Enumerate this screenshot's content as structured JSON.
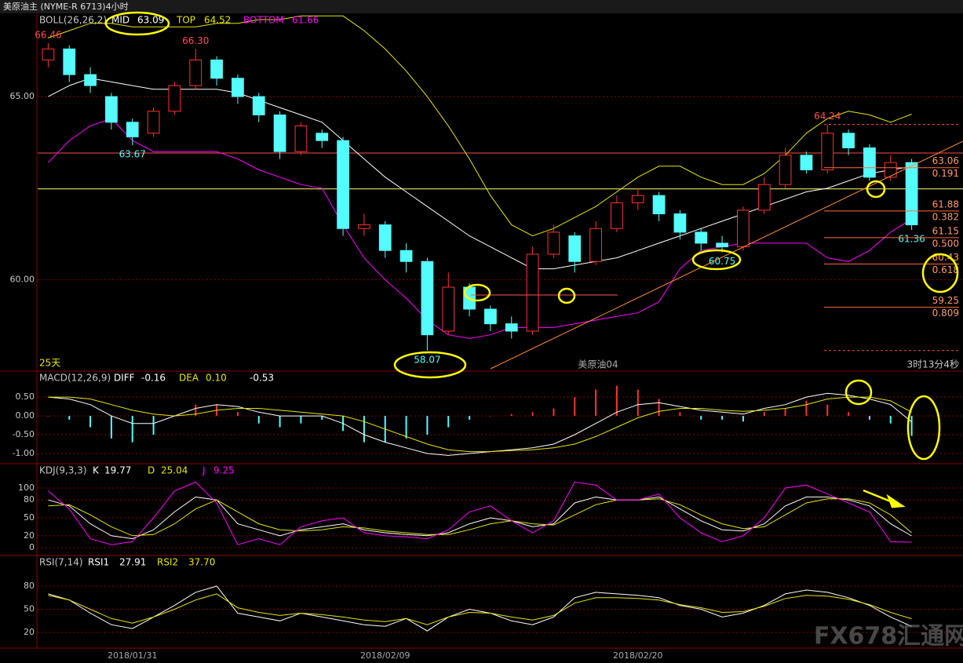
{
  "chart_data": [
    {
      "type": "candlestick",
      "title": "美原油主 (NYME-R 6713)4小时",
      "indicator": "BOLL(26,26,2)",
      "period_label": "25天",
      "contract": "美原油04",
      "countdown": "3时13分4秒",
      "watermark": "FX678汇通网",
      "categories": [
        null,
        null,
        null,
        null,
        "2018/01/31",
        null,
        null,
        null,
        null,
        null,
        null,
        null,
        null,
        null,
        null,
        null,
        "2018/02/09",
        null,
        null,
        null,
        null,
        null,
        null,
        null,
        null,
        null,
        null,
        null,
        "2018/02/20",
        null,
        null,
        null,
        null,
        null,
        null,
        null,
        null,
        null,
        null,
        null,
        null,
        null
      ],
      "open": [
        66.0,
        66.3,
        65.6,
        65.0,
        64.3,
        64.0,
        64.6,
        65.3,
        66.0,
        65.5,
        65.0,
        64.5,
        63.5,
        64.0,
        63.8,
        61.4,
        61.5,
        60.8,
        60.5,
        58.6,
        59.8,
        59.2,
        58.8,
        58.6,
        60.7,
        61.2,
        60.5,
        61.4,
        62.1,
        62.3,
        61.8,
        61.3,
        61.0,
        60.9,
        61.9,
        62.6,
        63.4,
        63.0,
        64.0,
        63.6,
        62.8,
        63.2
      ],
      "high": [
        66.46,
        66.4,
        65.8,
        65.1,
        64.4,
        64.7,
        65.4,
        66.3,
        66.1,
        65.6,
        65.1,
        64.6,
        64.3,
        64.1,
        63.9,
        61.8,
        61.6,
        61.0,
        60.6,
        60.2,
        59.9,
        59.3,
        59.0,
        60.9,
        61.5,
        61.3,
        61.6,
        62.3,
        62.5,
        62.4,
        61.9,
        61.4,
        61.2,
        62.0,
        62.8,
        63.6,
        63.5,
        64.24,
        64.1,
        63.7,
        63.4,
        63.3
      ],
      "low": [
        65.8,
        65.4,
        65.1,
        64.1,
        63.67,
        63.9,
        64.5,
        65.2,
        65.3,
        64.8,
        64.3,
        63.3,
        63.4,
        63.6,
        61.2,
        61.2,
        60.6,
        60.2,
        58.07,
        58.5,
        59.0,
        58.6,
        58.4,
        58.5,
        60.6,
        60.2,
        60.4,
        61.3,
        61.9,
        61.6,
        61.1,
        60.8,
        60.75,
        60.8,
        61.8,
        62.5,
        62.9,
        62.9,
        63.4,
        62.7,
        62.7,
        61.36
      ],
      "close": [
        66.3,
        65.6,
        65.3,
        64.3,
        63.9,
        64.6,
        65.3,
        66.0,
        65.5,
        65.0,
        64.5,
        63.5,
        64.2,
        63.8,
        61.4,
        61.5,
        60.8,
        60.5,
        58.5,
        59.8,
        59.2,
        58.8,
        58.6,
        60.7,
        61.3,
        60.5,
        61.4,
        62.1,
        62.3,
        61.8,
        61.3,
        61.0,
        60.9,
        61.9,
        62.6,
        63.4,
        63.0,
        64.0,
        63.6,
        62.8,
        63.2,
        61.5
      ],
      "up_color": "#ff3232",
      "down_color": "#54fcfc",
      "series": [
        {
          "name": "MID",
          "color": "#ffffff",
          "values": [
            65.0,
            65.3,
            65.5,
            65.4,
            65.3,
            65.2,
            65.2,
            65.2,
            65.2,
            65.1,
            64.9,
            64.7,
            64.5,
            64.3,
            63.8,
            63.3,
            62.8,
            62.4,
            62.0,
            61.6,
            61.2,
            60.9,
            60.6,
            60.3,
            60.3,
            60.4,
            60.5,
            60.6,
            60.8,
            61.0,
            61.2,
            61.4,
            61.6,
            61.8,
            62.0,
            62.2,
            62.4,
            62.5,
            62.7,
            62.9,
            63.0,
            63.09
          ]
        },
        {
          "name": "TOP",
          "color": "#e6e600",
          "values": [
            66.6,
            66.8,
            67.0,
            67.0,
            66.9,
            66.9,
            66.9,
            66.9,
            67.0,
            67.0,
            67.1,
            67.1,
            67.2,
            67.2,
            67.2,
            66.8,
            66.3,
            65.7,
            65.0,
            64.2,
            63.3,
            62.3,
            61.5,
            61.2,
            61.4,
            61.7,
            62.0,
            62.4,
            62.8,
            63.1,
            63.1,
            62.8,
            62.6,
            62.6,
            62.9,
            63.4,
            64.0,
            64.4,
            64.6,
            64.5,
            64.3,
            64.52
          ]
        },
        {
          "name": "BOTTOM",
          "color": "#ff00ff",
          "values": [
            63.2,
            63.8,
            64.2,
            64.4,
            63.8,
            63.5,
            63.5,
            63.5,
            63.5,
            63.3,
            63.0,
            62.8,
            62.6,
            62.5,
            61.5,
            60.6,
            60.0,
            59.5,
            58.9,
            58.5,
            58.4,
            58.5,
            58.7,
            58.7,
            58.7,
            58.8,
            58.9,
            59.0,
            59.1,
            59.4,
            60.3,
            60.8,
            60.9,
            61.0,
            61.0,
            61.0,
            61.0,
            60.6,
            60.5,
            60.8,
            61.3,
            61.66
          ]
        }
      ],
      "price_labels": [
        {
          "text": "66.46",
          "index": 0,
          "at": "high"
        },
        {
          "text": "66.30",
          "index": 7,
          "at": "high"
        },
        {
          "text": "63.67",
          "index": 4,
          "at": "low"
        },
        {
          "text": "58.07",
          "index": 18,
          "at": "low"
        },
        {
          "text": "60.75",
          "index": 32,
          "at": "low"
        },
        {
          "text": "64.24",
          "index": 37,
          "at": "high"
        },
        {
          "text": "61.36",
          "index": 41,
          "at": "low"
        }
      ],
      "hlines": [
        {
          "value": 63.46,
          "color": "#ff4d4d"
        },
        {
          "value": 62.48,
          "color": "#ffff66"
        }
      ],
      "fib_levels": [
        {
          "price": 63.06,
          "ratio": 0.191
        },
        {
          "price": 61.88,
          "ratio": 0.382
        },
        {
          "price": 61.15,
          "ratio": {
            "value": 0.5,
            "label": "0.500"
          }
        },
        {
          "price": 60.43,
          "ratio": 0.618
        },
        {
          "price": 59.25,
          "ratio": 0.809
        }
      ],
      "ylim": [
        57.53,
        67.25
      ],
      "yticks": [
        {
          "value": 60,
          "label": "60.00"
        },
        {
          "value": 65,
          "label": "65.00"
        }
      ],
      "grid": true
    },
    {
      "type": "macd",
      "title": "MACD(12,26,9)",
      "series": [
        {
          "name": "DIFF",
          "color": "#ffffff",
          "values": [
            0.5,
            0.45,
            0.3,
            0.0,
            -0.2,
            -0.2,
            0.0,
            0.2,
            0.3,
            0.25,
            0.1,
            0.0,
            0.0,
            0.0,
            -0.2,
            -0.5,
            -0.7,
            -0.85,
            -1.0,
            -1.05,
            -1.0,
            -0.95,
            -0.9,
            -0.85,
            -0.75,
            -0.5,
            -0.2,
            0.1,
            0.3,
            0.35,
            0.25,
            0.15,
            0.1,
            0.05,
            0.2,
            0.3,
            0.5,
            0.6,
            0.55,
            0.45,
            0.3,
            -0.16
          ]
        },
        {
          "name": "DEA",
          "color": "#e6e600",
          "values": [
            0.5,
            0.5,
            0.45,
            0.3,
            0.15,
            0.05,
            0.0,
            0.05,
            0.15,
            0.2,
            0.2,
            0.15,
            0.1,
            0.05,
            0.0,
            -0.15,
            -0.35,
            -0.55,
            -0.75,
            -0.9,
            -0.95,
            -0.95,
            -0.92,
            -0.9,
            -0.85,
            -0.75,
            -0.55,
            -0.3,
            -0.05,
            0.12,
            0.2,
            0.2,
            0.15,
            0.12,
            0.15,
            0.2,
            0.3,
            0.45,
            0.5,
            0.5,
            0.4,
            0.1
          ],
          "value_labels": [
            null,
            null,
            null,
            null,
            null,
            null,
            null,
            null,
            null,
            null,
            null,
            null,
            null,
            null,
            null,
            null,
            null,
            null,
            null,
            null,
            null,
            null,
            null,
            null,
            null,
            null,
            null,
            null,
            null,
            null,
            null,
            null,
            null,
            null,
            null,
            null,
            null,
            null,
            null,
            null,
            null,
            "0.10"
          ]
        }
      ],
      "bars": [
        0,
        -0.1,
        -0.3,
        -0.6,
        -0.7,
        -0.5,
        0,
        0.3,
        0.3,
        0.1,
        -0.2,
        -0.3,
        -0.2,
        -0.1,
        -0.4,
        -0.7,
        -0.7,
        -0.6,
        -0.5,
        -0.3,
        -0.1,
        0,
        0.05,
        0.1,
        0.2,
        0.5,
        0.7,
        0.8,
        0.7,
        0.45,
        0.1,
        -0.1,
        -0.1,
        -0.15,
        0.1,
        0.2,
        0.4,
        0.3,
        0.1,
        -0.1,
        -0.2,
        -0.53
      ],
      "up_color": "#ff3232",
      "down_color": "#54fcfc",
      "ylim": [
        -1.25,
        1.17
      ],
      "yticks": [
        {
          "value": 0.5,
          "label": "0.50"
        },
        {
          "value": 0,
          "label": "0.00"
        },
        {
          "value": -0.5,
          "label": "-0.50"
        },
        {
          "value": -1,
          "label": "-1.00"
        }
      ],
      "grid": true
    },
    {
      "type": "line",
      "title": "KDJ(9,3,3)",
      "series": [
        {
          "name": "K",
          "color": "#ffffff",
          "values": [
            80,
            70,
            40,
            20,
            15,
            30,
            60,
            85,
            80,
            40,
            30,
            20,
            30,
            35,
            40,
            30,
            25,
            22,
            20,
            25,
            40,
            50,
            45,
            35,
            40,
            75,
            85,
            80,
            80,
            85,
            65,
            45,
            30,
            28,
            40,
            70,
            85,
            85,
            80,
            70,
            40,
            19.77
          ]
        },
        {
          "name": "D",
          "color": "#e6e600",
          "values": [
            70,
            72,
            55,
            35,
            20,
            22,
            40,
            65,
            80,
            60,
            40,
            30,
            28,
            30,
            35,
            33,
            28,
            25,
            22,
            22,
            30,
            40,
            45,
            40,
            38,
            55,
            72,
            80,
            80,
            82,
            72,
            55,
            40,
            32,
            35,
            55,
            75,
            82,
            82,
            75,
            55,
            25.04
          ]
        },
        {
          "name": "J",
          "color": "#ff00ff",
          "values": [
            95,
            65,
            15,
            5,
            10,
            50,
            95,
            110,
            75,
            5,
            15,
            5,
            35,
            45,
            50,
            25,
            20,
            18,
            15,
            30,
            60,
            70,
            45,
            25,
            45,
            110,
            105,
            80,
            80,
            90,
            50,
            25,
            10,
            20,
            50,
            100,
            105,
            90,
            75,
            60,
            10,
            9.25
          ]
        }
      ],
      "ylim": [
        -11.8,
        139.5
      ],
      "yticks": [
        0,
        20,
        50,
        80,
        100
      ],
      "grid": true
    },
    {
      "type": "line",
      "title": "RSI(7,14)",
      "series": [
        {
          "name": "RSI1",
          "color": "#ffffff",
          "values": [
            70,
            62,
            45,
            30,
            25,
            40,
            55,
            72,
            80,
            45,
            40,
            35,
            45,
            40,
            35,
            30,
            28,
            38,
            22,
            40,
            50,
            45,
            35,
            30,
            40,
            65,
            72,
            70,
            68,
            65,
            55,
            50,
            40,
            45,
            55,
            70,
            75,
            72,
            65,
            55,
            40,
            27.91
          ]
        },
        {
          "name": "RSI2",
          "color": "#e6e600",
          "values": [
            68,
            62,
            50,
            38,
            32,
            40,
            50,
            62,
            70,
            52,
            46,
            42,
            45,
            43,
            40,
            36,
            34,
            38,
            30,
            40,
            46,
            45,
            40,
            36,
            42,
            58,
            65,
            65,
            64,
            62,
            56,
            52,
            46,
            47,
            54,
            64,
            68,
            67,
            63,
            56,
            46,
            37.7
          ],
          "value_labels": [
            null,
            null,
            null,
            null,
            null,
            null,
            null,
            null,
            null,
            null,
            null,
            null,
            null,
            null,
            null,
            null,
            null,
            null,
            null,
            null,
            null,
            null,
            null,
            null,
            null,
            null,
            null,
            null,
            null,
            null,
            null,
            null,
            null,
            null,
            null,
            null,
            null,
            null,
            null,
            null,
            null,
            "37.70"
          ]
        }
      ],
      "ylim": [
        0.7,
        118.7
      ],
      "yticks": [
        20,
        50,
        80
      ],
      "grid": true
    }
  ]
}
